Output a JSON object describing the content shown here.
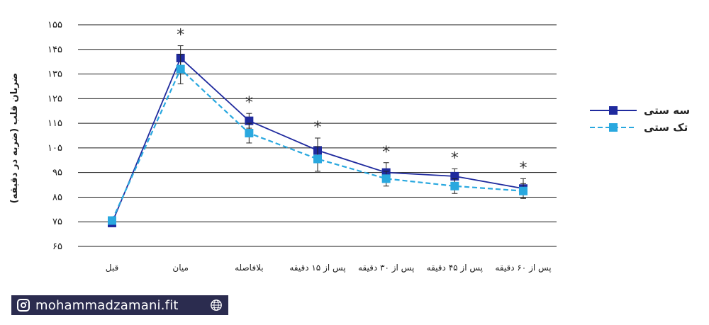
{
  "chart_data": {
    "type": "line",
    "title": "",
    "xlabel": "",
    "ylabel": "ضربان قلب (ضربه در دقیقه)",
    "categories": [
      "قبل",
      "میان",
      "بلافاصله",
      "پس از ۱۵ دقیقه",
      "پس از ۳۰ دقیقه",
      "پس از ۴۵ دقیقه",
      "پس از ۶۰ دقیقه"
    ],
    "yticks": [
      "۶۵",
      "۷۵",
      "۸۵",
      "۹۵",
      "۱۰۵",
      "۱۱۵",
      "۱۲۵",
      "۱۳۵",
      "۱۴۵",
      "۱۵۵"
    ],
    "ylim": [
      65,
      155
    ],
    "grid": true,
    "legend_position": "right",
    "series": [
      {
        "name": "سه ستی",
        "color": "#1f2a9e",
        "style": "solid",
        "values": [
          74.5,
          141.5,
          116,
          104,
          95,
          93.5,
          88.5
        ],
        "errors": [
          1.5,
          5,
          3,
          5,
          4,
          3,
          4
        ]
      },
      {
        "name": "تک ستی",
        "color": "#29a8df",
        "style": "dashed",
        "values": [
          75.5,
          137,
          111,
          100.5,
          92.5,
          89.5,
          87.5
        ],
        "errors": [
          1.5,
          6,
          4,
          5,
          3,
          3,
          3
        ]
      }
    ],
    "significance": [
      {
        "category": 1,
        "mark": "*"
      },
      {
        "category": 2,
        "mark": "*"
      },
      {
        "category": 3,
        "mark": "*"
      },
      {
        "category": 4,
        "mark": "*"
      },
      {
        "category": 5,
        "mark": "*"
      },
      {
        "category": 6,
        "mark": "*"
      }
    ]
  },
  "footer": {
    "handle": "mohammadzamani.fit",
    "icon_left": "instagram-icon",
    "icon_right": "globe-icon"
  }
}
